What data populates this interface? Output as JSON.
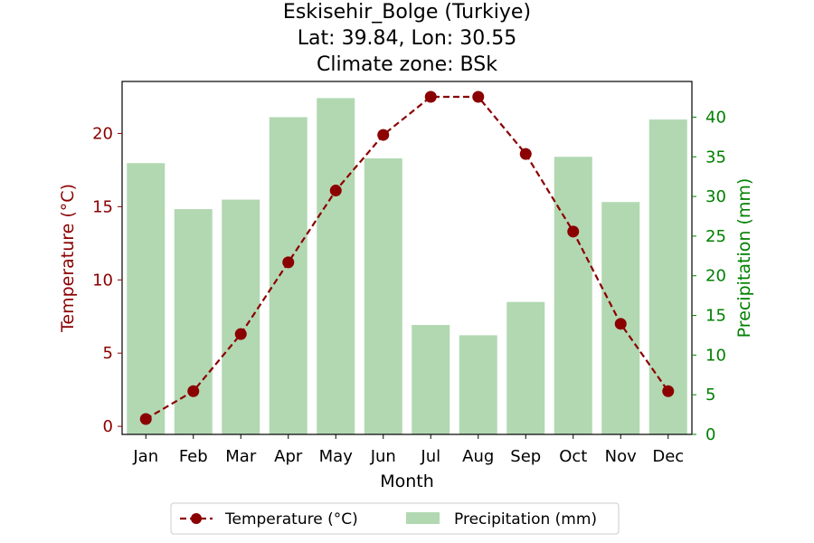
{
  "chart_data": {
    "type": "bar+line",
    "title_lines": [
      "Eskisehir_Bolge (Turkiye)",
      "Lat: 39.84, Lon: 30.55",
      "Climate zone: BSk"
    ],
    "xlabel": "Month",
    "ylabel_left": "Temperature (°C)",
    "ylabel_right": "Precipitation (mm)",
    "categories": [
      "Jan",
      "Feb",
      "Mar",
      "Apr",
      "May",
      "Jun",
      "Jul",
      "Aug",
      "Sep",
      "Oct",
      "Nov",
      "Dec"
    ],
    "temperature": {
      "name": "Temperature (°C)",
      "color": "#8b0000",
      "values": [
        0.5,
        2.4,
        6.3,
        11.2,
        16.1,
        19.9,
        22.5,
        22.5,
        18.6,
        13.3,
        7.0,
        2.4
      ]
    },
    "precipitation": {
      "name": "Precipitation (mm)",
      "color": "#b2d8b2",
      "values": [
        34.2,
        28.4,
        29.6,
        40.0,
        42.4,
        34.8,
        13.8,
        12.5,
        16.7,
        35.0,
        29.3,
        39.7
      ]
    },
    "ylim_left": [
      -0.55,
      23.55
    ],
    "yticks_left": [
      0,
      5,
      10,
      15,
      20
    ],
    "ylim_right": [
      0,
      44.5
    ],
    "yticks_right": [
      0,
      5,
      10,
      15,
      20,
      25,
      30,
      35,
      40
    ],
    "left_axis_color": "#8b0000",
    "right_axis_color": "#008000",
    "grid": false,
    "legend_position": "bottom-center"
  }
}
